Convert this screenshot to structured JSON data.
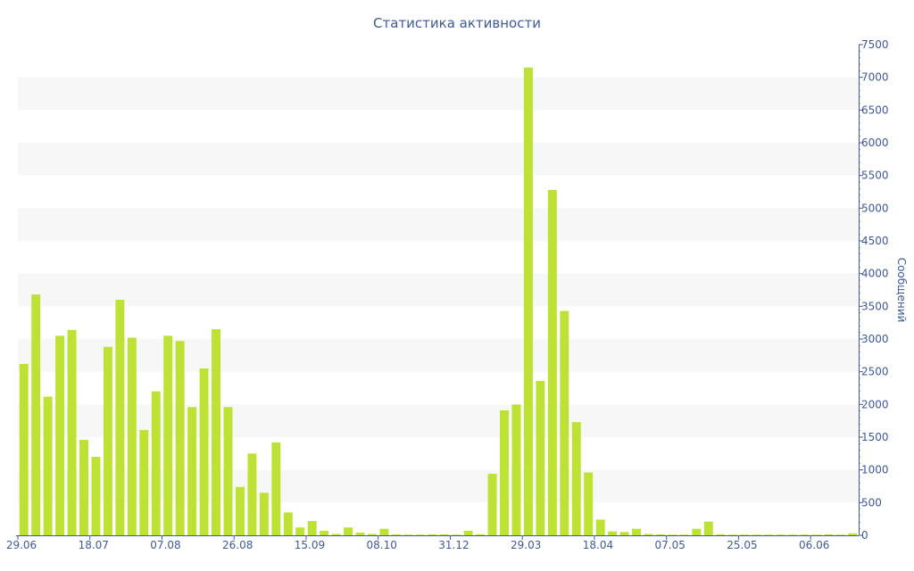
{
  "chart_data": {
    "type": "bar",
    "title": "Статистика активности",
    "ylabel": "Сообщений",
    "xlabel": "",
    "ylim": [
      0,
      7500
    ],
    "yticks": [
      0,
      500,
      1000,
      1500,
      2000,
      2500,
      3000,
      3500,
      4000,
      4500,
      5000,
      5500,
      6000,
      6500,
      7000,
      7500
    ],
    "y_axis_side": "right",
    "grid": "alternating horizontal bands",
    "bar_color": "#bde233",
    "band_color": "#f7f7f7",
    "text_color": "#3e5a9a",
    "x_tick_labels": [
      {
        "label": "29.06",
        "index": 0
      },
      {
        "label": "18.07",
        "index": 6
      },
      {
        "label": "07.08",
        "index": 12
      },
      {
        "label": "26.08",
        "index": 18
      },
      {
        "label": "15.09",
        "index": 24
      },
      {
        "label": "08.10",
        "index": 30
      },
      {
        "label": "31.12",
        "index": 36
      },
      {
        "label": "29.03",
        "index": 42
      },
      {
        "label": "18.04",
        "index": 48
      },
      {
        "label": "07.05",
        "index": 54
      },
      {
        "label": "25.05",
        "index": 60
      },
      {
        "label": "06.06",
        "index": 66
      }
    ],
    "values": [
      2620,
      3680,
      2120,
      3050,
      3140,
      1460,
      1200,
      2880,
      3600,
      3020,
      1610,
      2200,
      3050,
      2970,
      1960,
      2550,
      3150,
      1960,
      740,
      1250,
      650,
      1420,
      350,
      120,
      220,
      70,
      20,
      120,
      40,
      20,
      100,
      15,
      10,
      10,
      15,
      15,
      10,
      70,
      15,
      940,
      1910,
      2000,
      7150,
      2360,
      5280,
      3430,
      1730,
      960,
      240,
      60,
      50,
      100,
      20,
      15,
      10,
      10,
      100,
      210,
      15,
      10,
      10,
      10,
      10,
      10,
      10,
      10,
      10,
      15,
      10,
      30
    ]
  }
}
